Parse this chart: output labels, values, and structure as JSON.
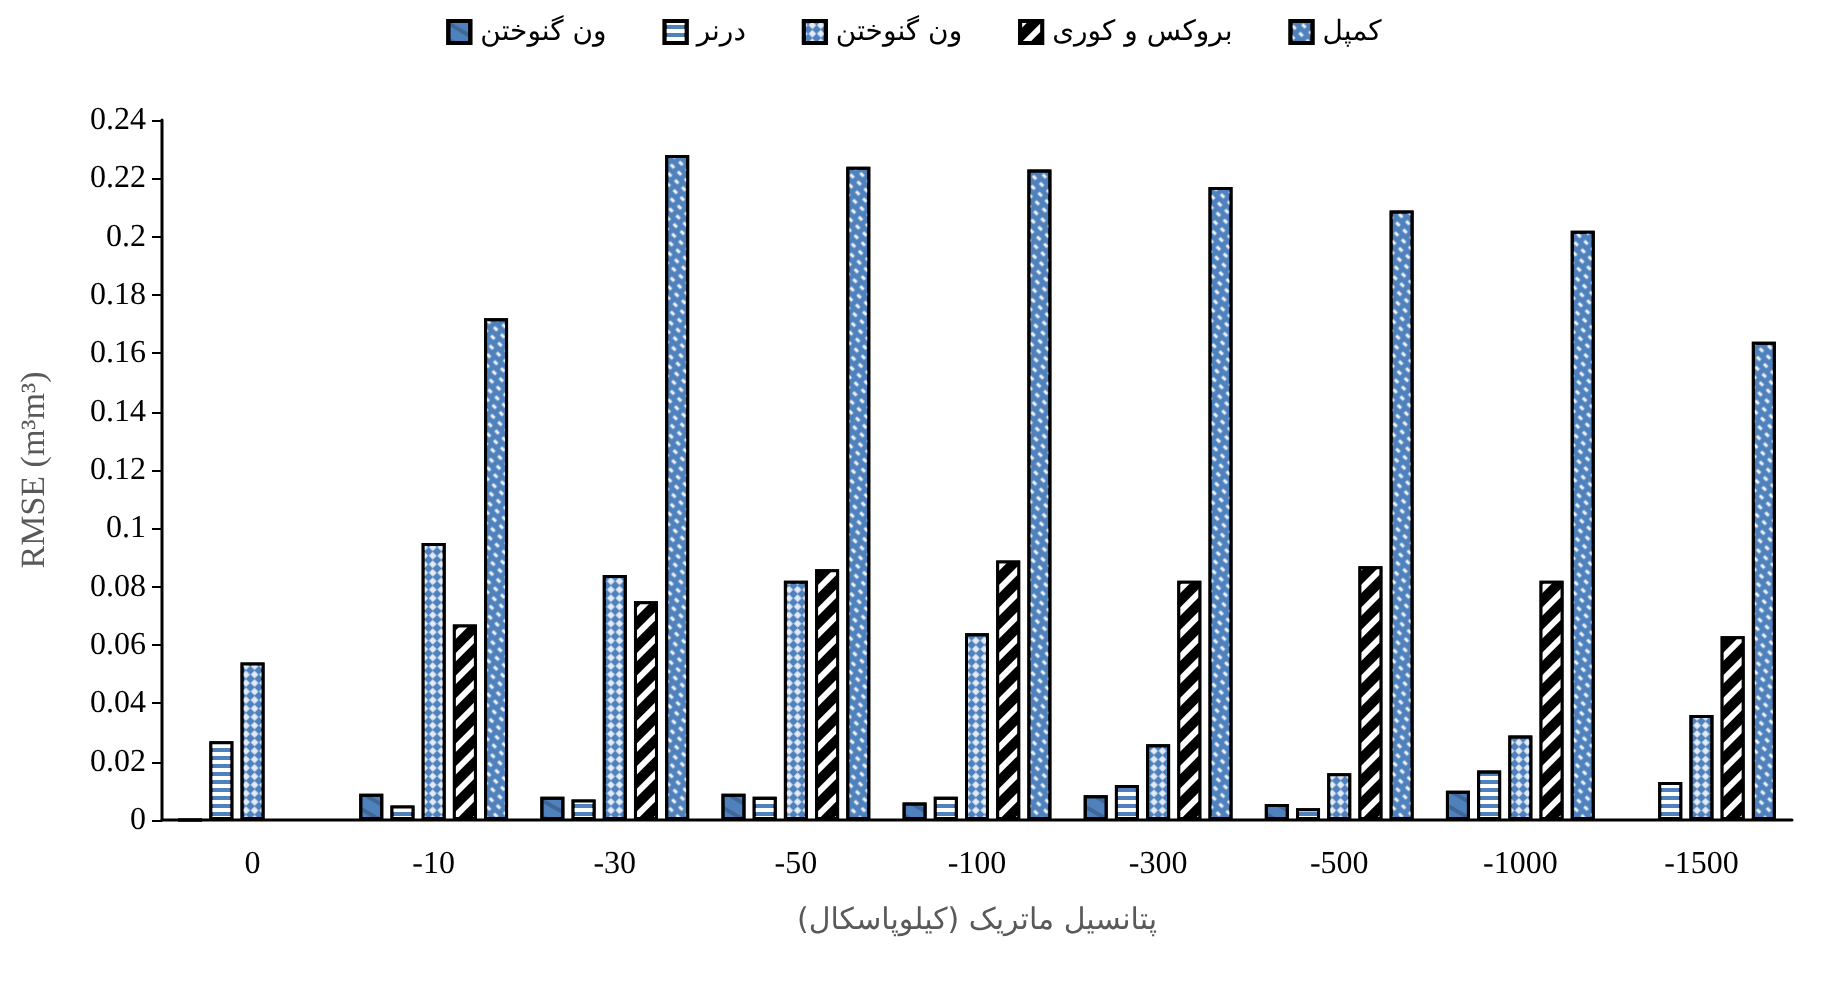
{
  "chart_data": {
    "type": "bar",
    "xlabel": "پتانسیل ماتریک (کیلوپاسکال)",
    "ylabel": "RMSE (m³m³)",
    "categories": [
      "0",
      "-10",
      "-30",
      "-50",
      "-100",
      "-300",
      "-500",
      "-1000",
      "-1500"
    ],
    "series": [
      {
        "name": "ون گنوختن",
        "color": "#4f81bd",
        "values": [
          0,
          0.009,
          0.008,
          0.009,
          0.006,
          0.0085,
          0.0055,
          0.01,
          null
        ]
      },
      {
        "name": "درنر",
        "color": "#4f81bd",
        "values": [
          0.027,
          0.005,
          0.007,
          0.008,
          0.008,
          0.012,
          0.004,
          0.017,
          0.013
        ]
      },
      {
        "name": "ون گنوختن",
        "color": "#4f81bd",
        "values": [
          0.054,
          0.095,
          0.084,
          0.082,
          0.064,
          0.026,
          0.016,
          0.029,
          0.036
        ]
      },
      {
        "name": "بروکس و کوری",
        "color": "#000000",
        "values": [
          null,
          0.067,
          0.075,
          0.086,
          0.089,
          0.082,
          0.087,
          0.082,
          0.063
        ]
      },
      {
        "name": "کمپل",
        "color": "#4f81bd",
        "values": [
          null,
          0.172,
          0.228,
          0.224,
          0.223,
          0.217,
          0.209,
          0.202,
          0.164
        ]
      }
    ],
    "ylim": [
      0,
      0.24
    ],
    "yticks": [
      0,
      0.02,
      0.04,
      0.06,
      0.08,
      0.1,
      0.12,
      0.14,
      0.16,
      0.18,
      0.2,
      0.22,
      0.24
    ],
    "grid": false,
    "legend": "top"
  }
}
